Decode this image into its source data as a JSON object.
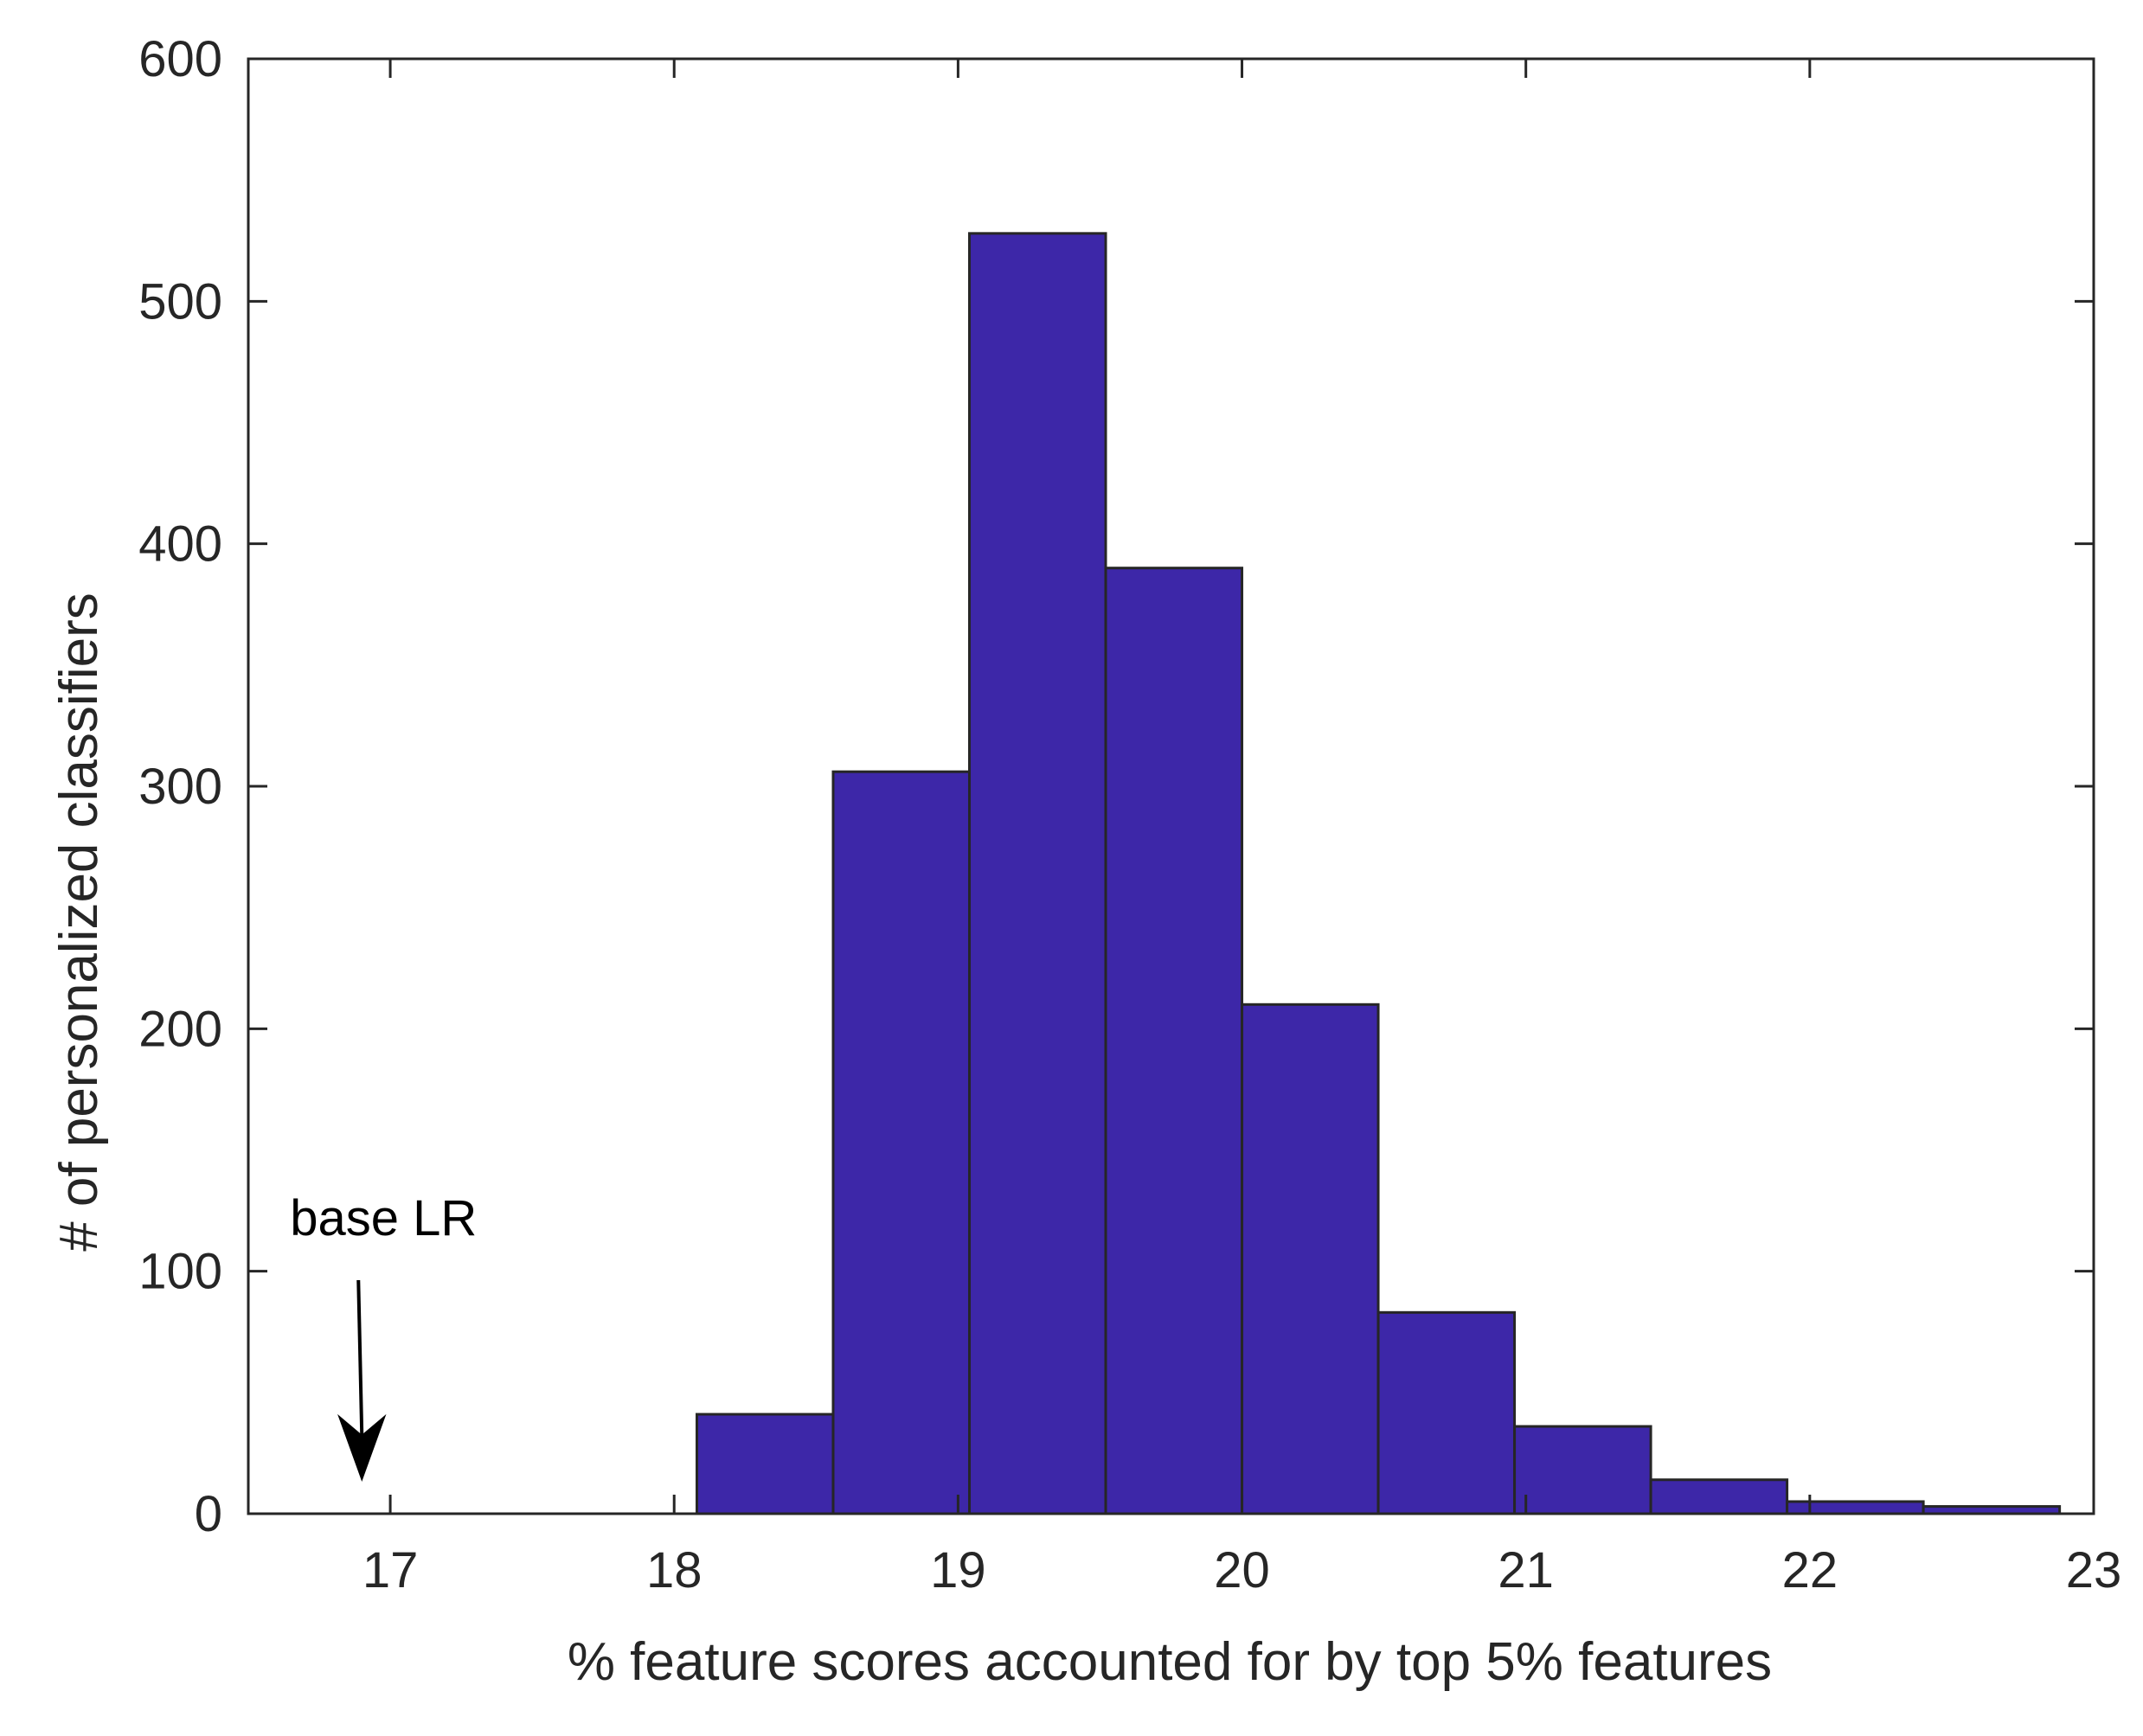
{
  "chart_data": {
    "type": "bar",
    "title": "",
    "xlabel": "% feature scores accounted for by top 5% features",
    "ylabel": "# of personalized classifiers",
    "xlim": [
      16.5,
      23
    ],
    "ylim": [
      0,
      600
    ],
    "xticks": [
      17,
      18,
      19,
      20,
      21,
      22,
      23
    ],
    "yticks": [
      0,
      100,
      200,
      300,
      400,
      500,
      600
    ],
    "grid": false,
    "box": true,
    "bar_color": "#3d27a8",
    "edge_color": "#262626",
    "bins": [
      {
        "x0": 18.08,
        "x1": 18.56,
        "count": 41
      },
      {
        "x0": 18.56,
        "x1": 19.04,
        "count": 306
      },
      {
        "x0": 19.04,
        "x1": 19.52,
        "count": 528
      },
      {
        "x0": 19.52,
        "x1": 20.0,
        "count": 390
      },
      {
        "x0": 20.0,
        "x1": 20.48,
        "count": 210
      },
      {
        "x0": 20.48,
        "x1": 20.96,
        "count": 83
      },
      {
        "x0": 20.96,
        "x1": 21.44,
        "count": 36
      },
      {
        "x0": 21.44,
        "x1": 21.92,
        "count": 14
      },
      {
        "x0": 21.92,
        "x1": 22.4,
        "count": 5
      },
      {
        "x0": 22.4,
        "x1": 22.88,
        "count": 3
      }
    ],
    "annotations": [
      {
        "text": "base LR",
        "x": 16.9,
        "arrow": "down"
      }
    ]
  }
}
